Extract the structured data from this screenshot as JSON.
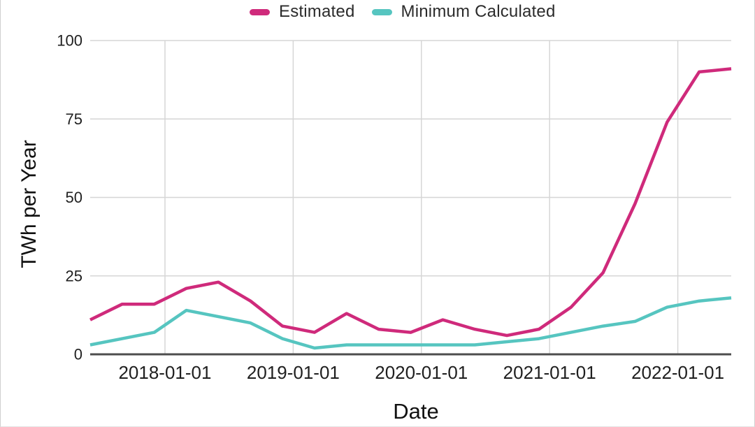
{
  "chart": {
    "legend": [
      {
        "label": "Estimated",
        "color": "#cf2a7b"
      },
      {
        "label": "Minimum Calculated",
        "color": "#56c5c0"
      }
    ]
  },
  "chart_data": {
    "type": "line",
    "title": "",
    "xlabel": "Date",
    "ylabel": "TWh per Year",
    "grid": true,
    "legend_position": "top-center",
    "xlim": [
      2017.4167,
      2022.4167
    ],
    "ylim": [
      0,
      100
    ],
    "y_ticks": [
      0,
      25,
      50,
      75,
      100
    ],
    "x_ticks": [
      {
        "value": 2018,
        "label": "2018-01-01"
      },
      {
        "value": 2019,
        "label": "2019-01-01"
      },
      {
        "value": 2020,
        "label": "2020-01-01"
      },
      {
        "value": 2021,
        "label": "2021-01-01"
      },
      {
        "value": 2022,
        "label": "2022-01-01"
      }
    ],
    "x_dates": [
      "2017-06",
      "2017-09",
      "2017-12",
      "2018-03",
      "2018-06",
      "2018-09",
      "2018-12",
      "2019-03",
      "2019-06",
      "2019-09",
      "2019-12",
      "2020-03",
      "2020-06",
      "2020-09",
      "2020-12",
      "2021-03",
      "2021-06",
      "2021-09",
      "2021-12",
      "2022-03",
      "2022-06"
    ],
    "x": [
      2017.4167,
      2017.6667,
      2017.9167,
      2018.1667,
      2018.4167,
      2018.6667,
      2018.9167,
      2019.1667,
      2019.4167,
      2019.6667,
      2019.9167,
      2020.1667,
      2020.4167,
      2020.6667,
      2020.9167,
      2021.1667,
      2021.4167,
      2021.6667,
      2021.9167,
      2022.1667,
      2022.4167
    ],
    "series": [
      {
        "name": "Estimated",
        "color": "#cf2a7b",
        "values": [
          11,
          16,
          16,
          21,
          23,
          17,
          9,
          7,
          13,
          8,
          7,
          11,
          8,
          6,
          8,
          15,
          26,
          48,
          74,
          90,
          91
        ]
      },
      {
        "name": "Minimum Calculated",
        "color": "#56c5c0",
        "values": [
          3,
          5,
          7,
          14,
          12,
          10,
          5,
          2,
          3,
          3,
          3,
          3,
          3,
          4,
          5,
          7,
          9,
          10.5,
          15,
          17,
          18
        ]
      }
    ]
  },
  "colors": {
    "background": "#ffffff",
    "gridline": "#d6d6d6",
    "axis_line": "#4d4d4d",
    "tick_text": "#1f1f1f",
    "legend_text": "#2b2b2b",
    "border": "#cfcfcf"
  }
}
